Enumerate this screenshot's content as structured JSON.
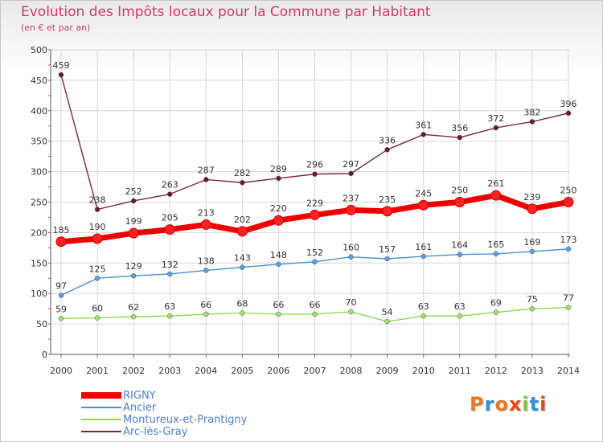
{
  "title": "Evolution des Impôts locaux pour la Commune par Habitant",
  "subtitle": "(en € et par an)",
  "logo": {
    "text": "Proxiti",
    "colors": [
      "#e07b2a",
      "#3a8fd1",
      "#e07b2a",
      "#e84a1b",
      "#7fc241",
      "#3a8fd1",
      "#e84a1b"
    ]
  },
  "chart_data": {
    "type": "line",
    "title": "Evolution des Impôts locaux pour la Commune par Habitant",
    "subtitle": "(en € et par an)",
    "ylim": [
      0,
      500
    ],
    "yticks": [
      "0",
      "50",
      "100",
      "150",
      "200",
      "250",
      "300",
      "350",
      "400",
      "450",
      "500"
    ],
    "x": [
      "2000",
      "2001",
      "2002",
      "2003",
      "2004",
      "2005",
      "2006",
      "2007",
      "2008",
      "2009",
      "2010",
      "2011",
      "2012",
      "2013",
      "2014"
    ],
    "grid": true,
    "legend_position": "bottom-left",
    "series": [
      {
        "name": "RIGNY",
        "color": "#ee0000",
        "marker": "#ff2222",
        "values": [
          185,
          190,
          199,
          205,
          213,
          202,
          220,
          229,
          237,
          235,
          245,
          250,
          261,
          239,
          250
        ]
      },
      {
        "name": "Ancier",
        "color": "#4a8fd0",
        "marker": "#5aa0e0",
        "values": [
          97,
          125,
          129,
          132,
          138,
          143,
          148,
          152,
          160,
          157,
          161,
          164,
          165,
          169,
          173
        ]
      },
      {
        "name": "Montureux-et-Prantigny",
        "color": "#8fd860",
        "marker": "#a2e070",
        "values": [
          59,
          60,
          62,
          63,
          66,
          68,
          66,
          66,
          70,
          54,
          63,
          63,
          69,
          75,
          77
        ]
      },
      {
        "name": "Arc-lès-Gray",
        "color": "#7a2a3a",
        "marker": "#6a1a28",
        "values": [
          459,
          238,
          252,
          263,
          287,
          282,
          289,
          296,
          297,
          336,
          361,
          356,
          372,
          382,
          396
        ]
      }
    ]
  }
}
